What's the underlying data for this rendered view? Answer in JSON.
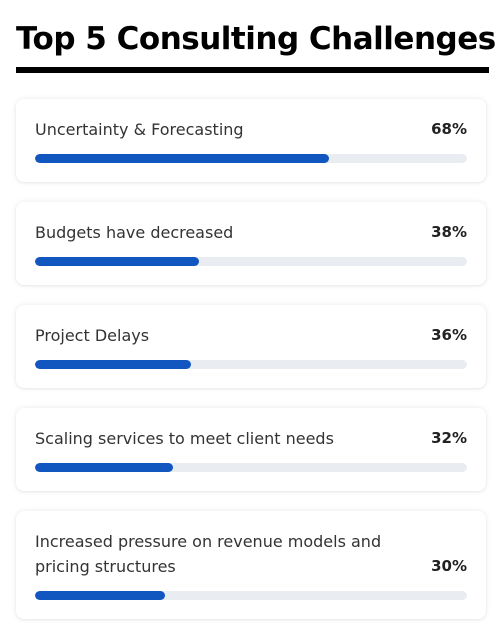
{
  "chart_data": {
    "type": "bar",
    "title": "Top 5 Consulting Challenges",
    "categories": [
      "Uncertainty & Forecasting",
      "Budgets have decreased",
      "Project Delays",
      "Scaling services to meet client needs",
      "Increased pressure on revenue models and pricing structures"
    ],
    "values": [
      68,
      38,
      36,
      32,
      30
    ],
    "value_labels": [
      "68%",
      "38%",
      "36%",
      "32%",
      "30%"
    ],
    "ylim": [
      0,
      100
    ],
    "orientation": "horizontal",
    "bar_color": "#1257c0",
    "track_color": "#e9edf1"
  }
}
